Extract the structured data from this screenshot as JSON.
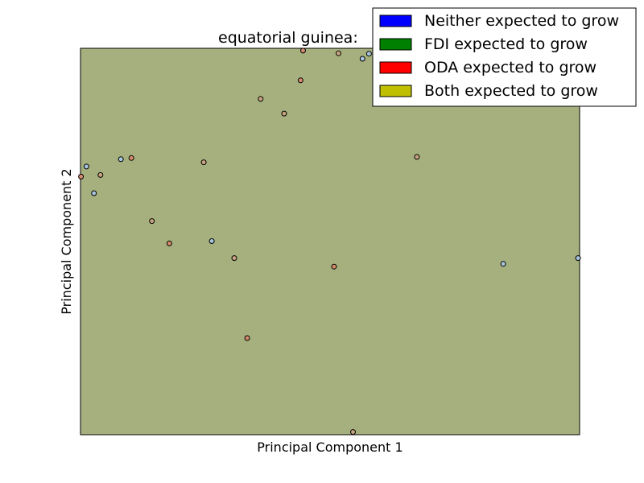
{
  "chart_data": {
    "type": "scatter",
    "title": "equatorial guinea: ",
    "xlabel": "Principal Component 1",
    "ylabel": "Principal Component 2",
    "xlim": [
      0,
      1
    ],
    "ylim": [
      0,
      1
    ],
    "grid": false,
    "background_color": "#a5b07e",
    "legend": {
      "placement": "top-right",
      "entries": [
        {
          "label": "Neither expected to grow",
          "color": "#0000ff"
        },
        {
          "label": "FDI expected to grow",
          "color": "#008000"
        },
        {
          "label": "ODA expected to grow",
          "color": "#ff0000"
        },
        {
          "label": "Both expected to grow",
          "color": "#c0c000"
        }
      ]
    },
    "series": [
      {
        "color": "#a8c4dc",
        "points": [
          [
            0.012,
            0.694
          ],
          [
            0.081,
            0.713
          ],
          [
            0.027,
            0.625
          ],
          [
            0.263,
            0.501
          ],
          [
            0.565,
            0.973
          ],
          [
            0.578,
            0.986
          ],
          [
            0.847,
            0.442
          ],
          [
            0.997,
            0.457
          ]
        ]
      },
      {
        "color": "#c9a37e",
        "points": [
          [
            0.04,
            0.672
          ],
          [
            0.143,
            0.553
          ],
          [
            0.247,
            0.705
          ],
          [
            0.308,
            0.457
          ],
          [
            0.361,
            0.869
          ],
          [
            0.408,
            0.831
          ],
          [
            0.517,
            0.987
          ],
          [
            0.674,
            0.719
          ],
          [
            0.546,
            0.007
          ]
        ]
      },
      {
        "color": "#d68a6c",
        "points": [
          [
            0.001,
            0.668
          ],
          [
            0.102,
            0.716
          ],
          [
            0.178,
            0.495
          ],
          [
            0.441,
            0.917
          ],
          [
            0.446,
            0.994
          ],
          [
            0.508,
            0.435
          ],
          [
            0.334,
            0.25
          ]
        ]
      }
    ]
  }
}
